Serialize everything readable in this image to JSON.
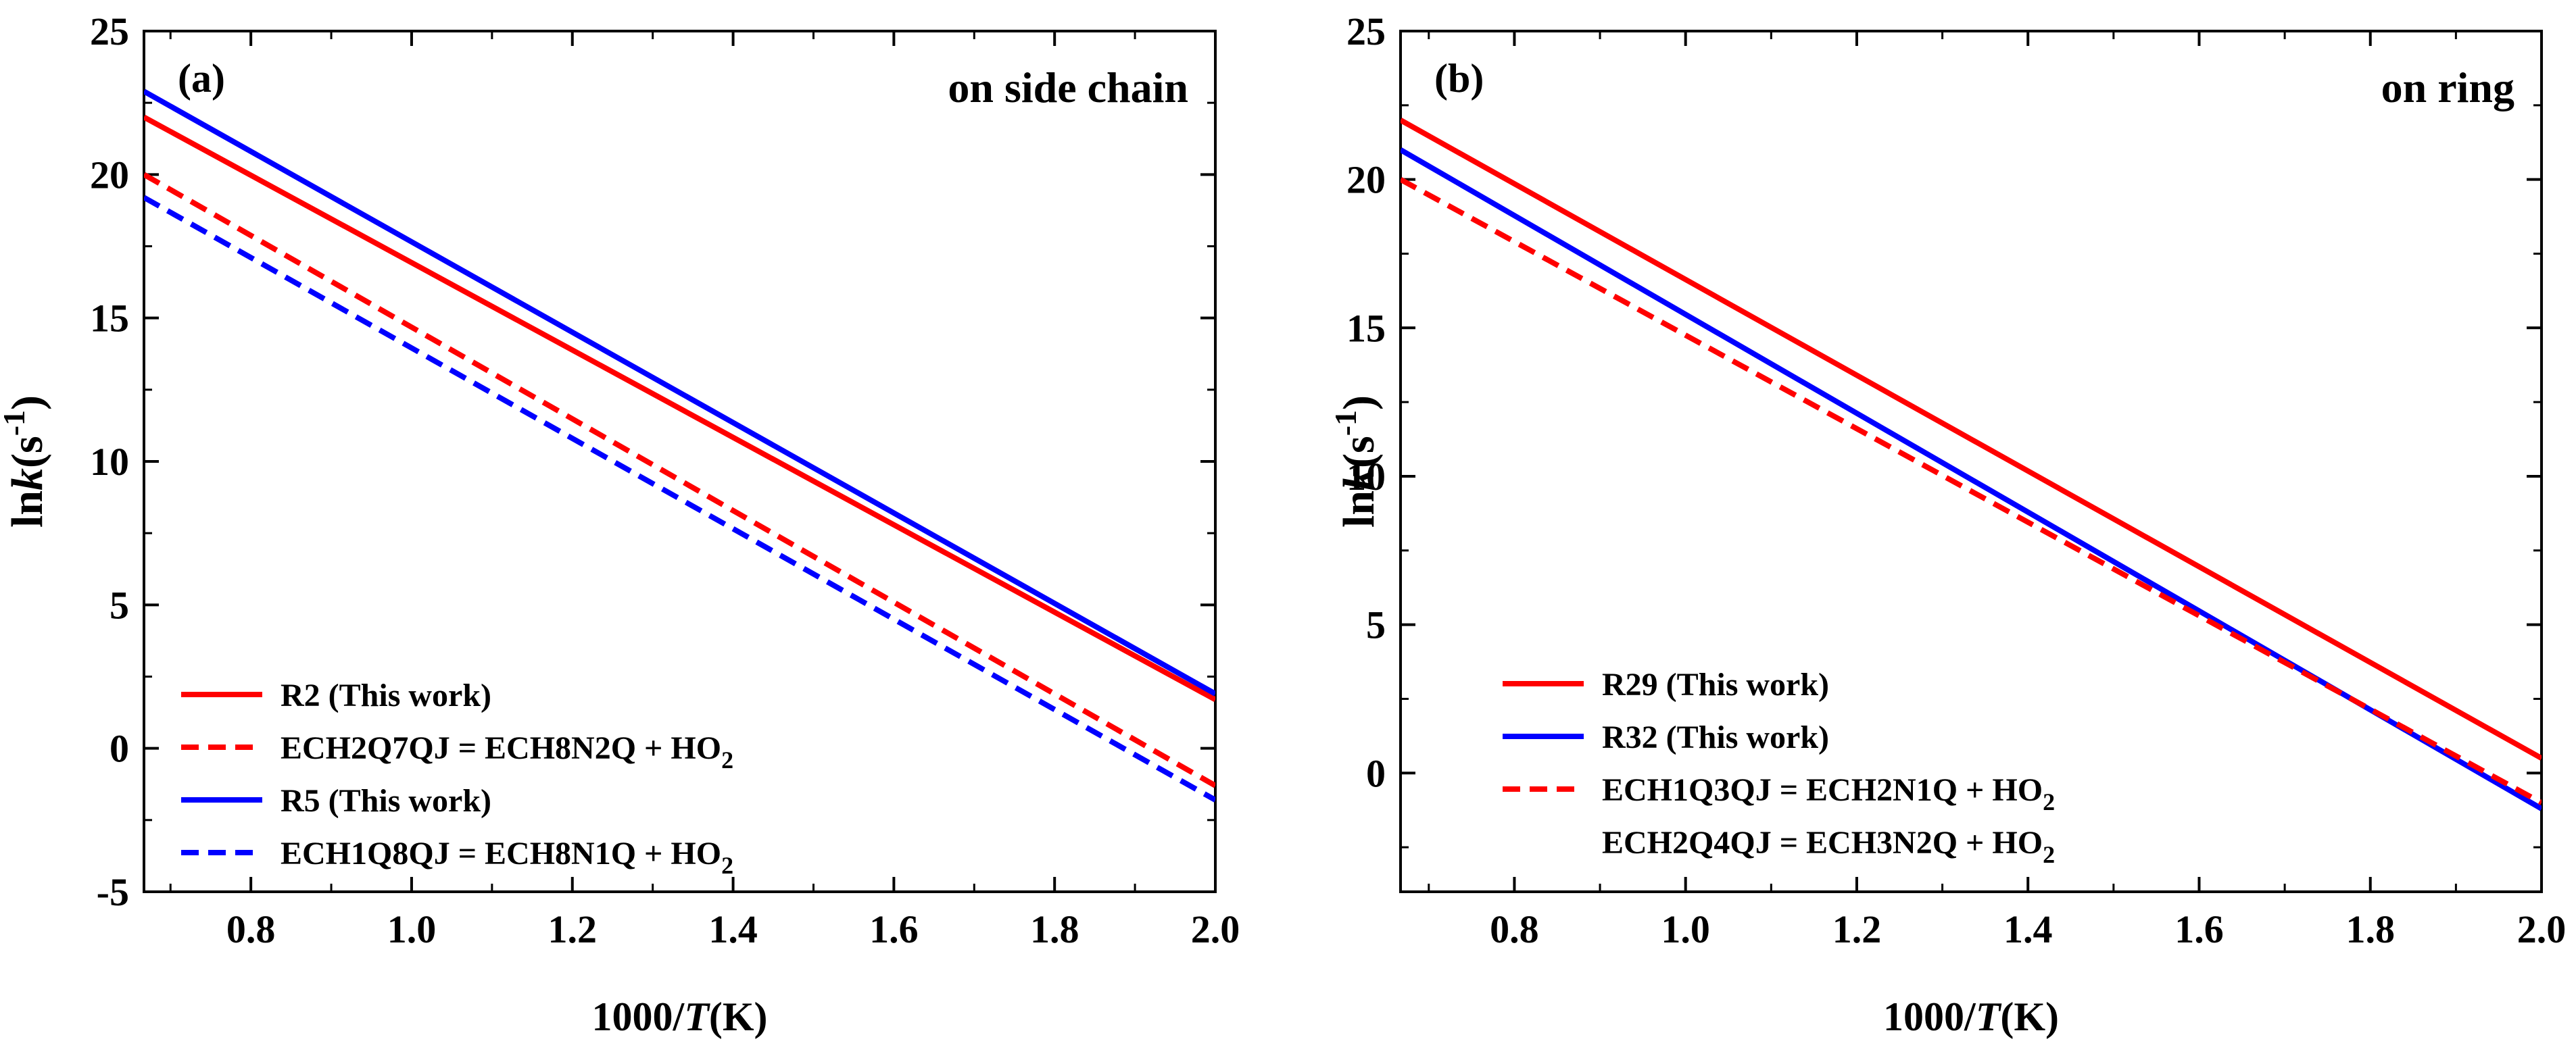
{
  "chart_data": [
    {
      "type": "line",
      "panel_label": "(a)",
      "corner_title": "on side chain",
      "xlabel_pre": "1000/",
      "xlabel_var": "T",
      "xlabel_post": "(K)",
      "ylabel_pre": "ln",
      "ylabel_var": "k",
      "ylabel_unit": "(s",
      "ylabel_sup": "-1",
      "ylabel_close": ")",
      "xlim": [
        0.667,
        2.0
      ],
      "ylim": [
        -5,
        25
      ],
      "xticks": [
        0.8,
        1.0,
        1.2,
        1.4,
        1.6,
        1.8,
        2.0
      ],
      "xtick_labels": [
        "0.8",
        "1.0",
        "1.2",
        "1.4",
        "1.6",
        "1.8",
        "2.0"
      ],
      "yticks": [
        -5,
        0,
        5,
        10,
        15,
        20,
        25
      ],
      "ytick_labels": [
        "-5",
        "0",
        "5",
        "10",
        "15",
        "20",
        "25"
      ],
      "legend_position": "bottom-left",
      "series": [
        {
          "name": "R2 (This work)",
          "legend_text": "R2 (This work)",
          "legend_sub": "",
          "legend_tail": "",
          "color": "#ff0000",
          "style": "solid",
          "x": [
            0.667,
            2.0
          ],
          "y": [
            22.0,
            1.7
          ]
        },
        {
          "name": "ECH2Q7QJ = ECH8N2Q + HO2",
          "legend_text": "ECH2Q7QJ = ECH8N2Q + HO",
          "legend_sub": "2",
          "legend_tail": "",
          "color": "#ff0000",
          "style": "dashed",
          "x": [
            0.667,
            2.0
          ],
          "y": [
            20.0,
            -1.3
          ]
        },
        {
          "name": "R5 (This work)",
          "legend_text": "R5 (This work)",
          "legend_sub": "",
          "legend_tail": "",
          "color": "#0000ff",
          "style": "solid",
          "x": [
            0.667,
            2.0
          ],
          "y": [
            22.9,
            1.9
          ]
        },
        {
          "name": "ECH1Q8QJ = ECH8N1Q + HO2",
          "legend_text": "ECH1Q8QJ = ECH8N1Q + HO",
          "legend_sub": "2",
          "legend_tail": "",
          "color": "#0000ff",
          "style": "dashed",
          "x": [
            0.667,
            2.0
          ],
          "y": [
            19.2,
            -1.8
          ]
        }
      ]
    },
    {
      "type": "line",
      "panel_label": "(b)",
      "corner_title": "on ring",
      "xlabel_pre": "1000/",
      "xlabel_var": "T",
      "xlabel_post": "(K)",
      "ylabel_pre": "ln",
      "ylabel_var": "k",
      "ylabel_unit": "(s",
      "ylabel_sup": "-1",
      "ylabel_close": ")",
      "xlim": [
        0.667,
        2.0
      ],
      "ylim": [
        -4,
        25
      ],
      "xticks": [
        0.8,
        1.0,
        1.2,
        1.4,
        1.6,
        1.8,
        2.0
      ],
      "xtick_labels": [
        "0.8",
        "1.0",
        "1.2",
        "1.4",
        "1.6",
        "1.8",
        "2.0"
      ],
      "yticks": [
        0,
        5,
        10,
        15,
        20,
        25
      ],
      "ytick_labels": [
        "0",
        "5",
        "10",
        "15",
        "20",
        "25"
      ],
      "legend_position": "bottom-left",
      "series": [
        {
          "name": "R29 (This work)",
          "legend_text": "R29 (This work)",
          "legend_sub": "",
          "legend_tail": "",
          "color": "#ff0000",
          "style": "solid",
          "x": [
            0.667,
            2.0
          ],
          "y": [
            22.0,
            0.5
          ]
        },
        {
          "name": "R32 (This work)",
          "legend_text": "R32 (This work)",
          "legend_sub": "",
          "legend_tail": "",
          "color": "#0000ff",
          "style": "solid",
          "x": [
            0.667,
            2.0
          ],
          "y": [
            21.0,
            -1.2
          ]
        },
        {
          "name": "ECH1Q3QJ = ECH2N1Q + HO2",
          "legend_text": "ECH1Q3QJ = ECH2N1Q + HO",
          "legend_sub": "2",
          "legend_tail": "",
          "color": "#ff0000",
          "style": "dashed",
          "x": [
            0.667,
            2.0
          ],
          "y": [
            20.0,
            -1.0
          ]
        },
        {
          "name": "ECH2Q4QJ = ECH3N2Q + HO2",
          "legend_text": "ECH2Q4QJ = ECH3N2Q + HO",
          "legend_sub": "2",
          "legend_tail": "",
          "color": "#0000ff",
          "style": "dashed",
          "x": [
            0.667,
            2.0
          ],
          "y": [
            20.0,
            -1.0
          ],
          "hidden_line": true
        }
      ]
    }
  ]
}
